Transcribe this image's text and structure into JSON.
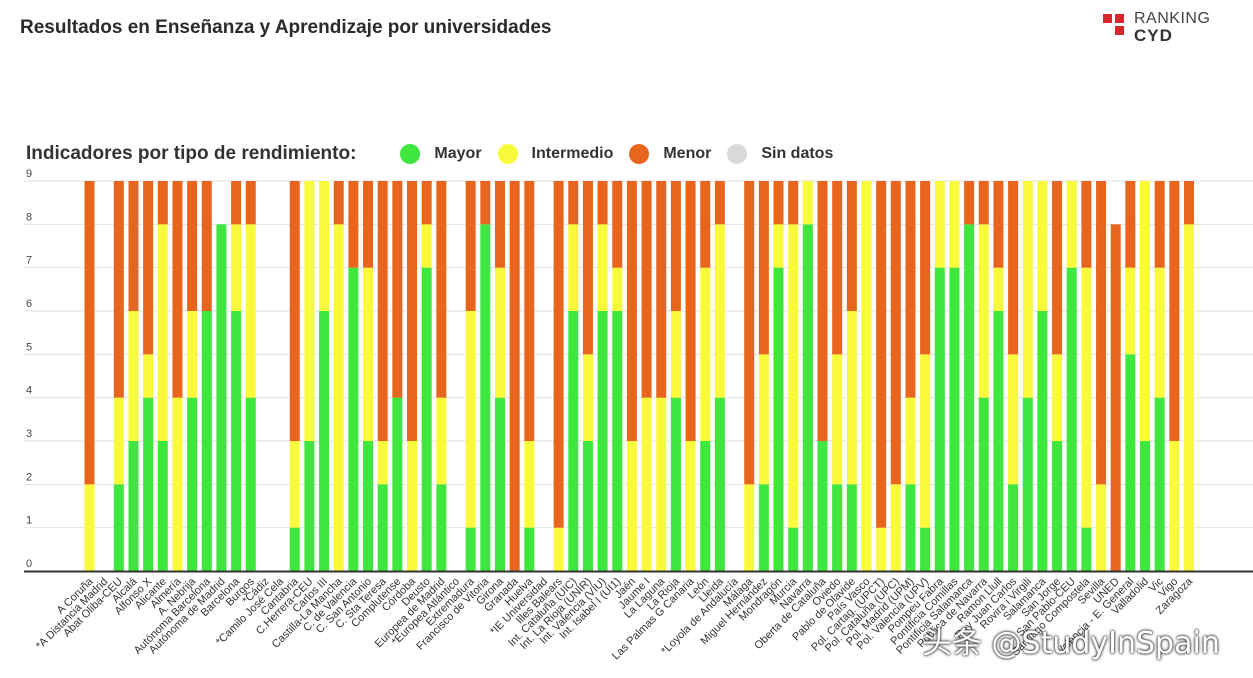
{
  "title": "Resultados en Enseñanza y Aprendizaje por universidades",
  "logo": {
    "line1": "RANKING",
    "line2": "CYD"
  },
  "legend": {
    "title": "Indicadores por tipo de rendimiento:",
    "items": [
      {
        "label": "Mayor",
        "color": "#3ee63e"
      },
      {
        "label": "Intermedio",
        "color": "#fafa3c"
      },
      {
        "label": "Menor",
        "color": "#e8651e"
      },
      {
        "label": "Sin datos",
        "color": "#d9d9d9"
      }
    ]
  },
  "watermark": "头条 @StudyInSpain",
  "chart_data": {
    "type": "bar",
    "stacked": true,
    "title": "Resultados en Enseñanza y Aprendizaje por universidades",
    "ylim": [
      0,
      9
    ],
    "yticks": [
      0,
      1,
      2,
      3,
      4,
      5,
      6,
      7,
      8,
      9
    ],
    "grid": true,
    "categories": [
      "A Coruña",
      "*A Distancia Madrid",
      "Abat Oliba-CEU",
      "Alcalá",
      "Alfonso X",
      "Alicante",
      "Almería",
      "A. Nebrija",
      "Autónoma Barcelona",
      "Autónoma de Madrid",
      "Barcelona",
      "Burgos",
      "*Cádiz",
      "*Camilo José Cela",
      "Cantabria",
      "C.Herrera-CEU",
      "Carlos III",
      "Castilla-La Mancha",
      "C. de Valencia",
      "C. San Antonio",
      "C. Sta Teresa",
      "Complutense",
      "Córdoba",
      "Deusto",
      "Europea de Madrid",
      "*Europea Atlántico",
      "Extremadura",
      "Francisco de Vitoria",
      "Girona",
      "Granada",
      "Huelva",
      "*IE Universidad",
      "Illes Balears",
      "Int. Cataluña (UIC)",
      "Int. La Rioja (UNIR)",
      "Int. Valencia (VIU)",
      "Int. Isabel I (UI1)",
      "Jaén",
      "Jaume I",
      "La Laguna",
      "La Rioja",
      "Las Palmas G Canaria",
      "León",
      "Lleida",
      "*Loyola de Andalucía",
      "Málaga",
      "Miguel Hernández",
      "Mondragón",
      "Murcia",
      "Navarra",
      "Oberta de Cataluña",
      "Oviedo",
      "Pablo de Olavide",
      "País Vasco",
      "Pol. Cartag. (UPCT)",
      "Pol. Cataluña (UPC)",
      "Pol. Madrid (UPM)",
      "Pol. Valencia (UPV)",
      "Pompeu Fabra",
      "Pontificia Comillas",
      "Pontificia Salamanca",
      "Pública de Navarra",
      "Ramon Llull",
      "Rey Juan Carlos",
      "Rovira i Virgili",
      "Salamanca",
      "San Jorge",
      "San Pablo-CEU",
      "Santiago Compostela",
      "Sevilla",
      "UNED",
      "Valencia - E. General",
      "Valladolid",
      "Vic",
      "Vigo",
      "Zaragoza"
    ],
    "series": [
      {
        "name": "Mayor",
        "color": "#3ee63e",
        "values": [
          0,
          0,
          2,
          3,
          4,
          3,
          0,
          4,
          6,
          8,
          6,
          4,
          0,
          0,
          1,
          3,
          6,
          0,
          7,
          3,
          2,
          4,
          0,
          7,
          2,
          0,
          1,
          8,
          4,
          0,
          1,
          0,
          0,
          6,
          3,
          6,
          6,
          0,
          0,
          0,
          4,
          0,
          3,
          4,
          0,
          0,
          2,
          7,
          1,
          8,
          3,
          2,
          2,
          0,
          0,
          0,
          2,
          1,
          7,
          7,
          8,
          4,
          6,
          2,
          4,
          6,
          3,
          7,
          1,
          0,
          0,
          5,
          3,
          4,
          0,
          0
        ]
      },
      {
        "name": "Intermedio",
        "color": "#fafa3c",
        "values": [
          2,
          0,
          2,
          3,
          1,
          5,
          4,
          2,
          0,
          0,
          2,
          4,
          0,
          0,
          2,
          6,
          3,
          8,
          0,
          4,
          1,
          0,
          3,
          1,
          2,
          0,
          5,
          0,
          3,
          0,
          2,
          0,
          1,
          2,
          2,
          2,
          1,
          3,
          4,
          4,
          2,
          3,
          4,
          4,
          0,
          2,
          3,
          1,
          7,
          1,
          0,
          3,
          4,
          9,
          1,
          2,
          2,
          4,
          2,
          2,
          0,
          4,
          1,
          3,
          5,
          3,
          2,
          2,
          6,
          2,
          0,
          2,
          6,
          3,
          3,
          8
        ]
      },
      {
        "name": "Menor",
        "color": "#e8651e",
        "values": [
          7,
          0,
          5,
          3,
          4,
          1,
          5,
          3,
          3,
          0,
          1,
          1,
          0,
          0,
          6,
          0,
          0,
          1,
          2,
          2,
          6,
          5,
          6,
          1,
          5,
          0,
          3,
          1,
          2,
          9,
          6,
          0,
          8,
          1,
          4,
          1,
          2,
          6,
          5,
          5,
          3,
          6,
          2,
          1,
          0,
          7,
          4,
          1,
          1,
          0,
          6,
          4,
          3,
          0,
          8,
          7,
          5,
          4,
          0,
          0,
          1,
          1,
          2,
          4,
          0,
          0,
          4,
          0,
          2,
          7,
          8,
          2,
          0,
          2,
          6,
          1
        ]
      }
    ]
  }
}
